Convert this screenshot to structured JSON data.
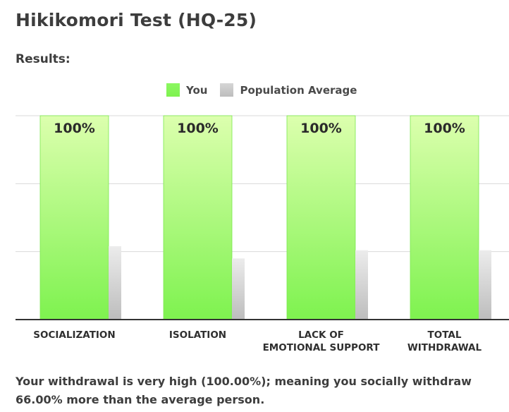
{
  "page": {
    "title": "Hikikomori Test (HQ-25)",
    "subtitle": "Results:",
    "result_text": "Your withdrawal is very high (100.00%); meaning you socially withdraw 66.00% more than the average person."
  },
  "chart_data": {
    "type": "bar",
    "categories": [
      [
        "SOCIALIZATION"
      ],
      [
        "ISOLATION"
      ],
      [
        "LACK OF",
        "EMOTIONAL SUPPORT"
      ],
      [
        "TOTAL",
        "WITHDRAWAL"
      ]
    ],
    "series": [
      {
        "name": "You",
        "values": [
          100,
          100,
          100,
          100
        ],
        "labels": [
          "100%",
          "100%",
          "100%",
          "100%"
        ],
        "color": "#7ef24f"
      },
      {
        "name": "Population Average",
        "values": [
          36,
          30,
          34,
          34
        ],
        "color": "#c4c4c4"
      }
    ],
    "ylim": [
      0,
      100
    ],
    "grid": true,
    "legend": "top-center"
  }
}
